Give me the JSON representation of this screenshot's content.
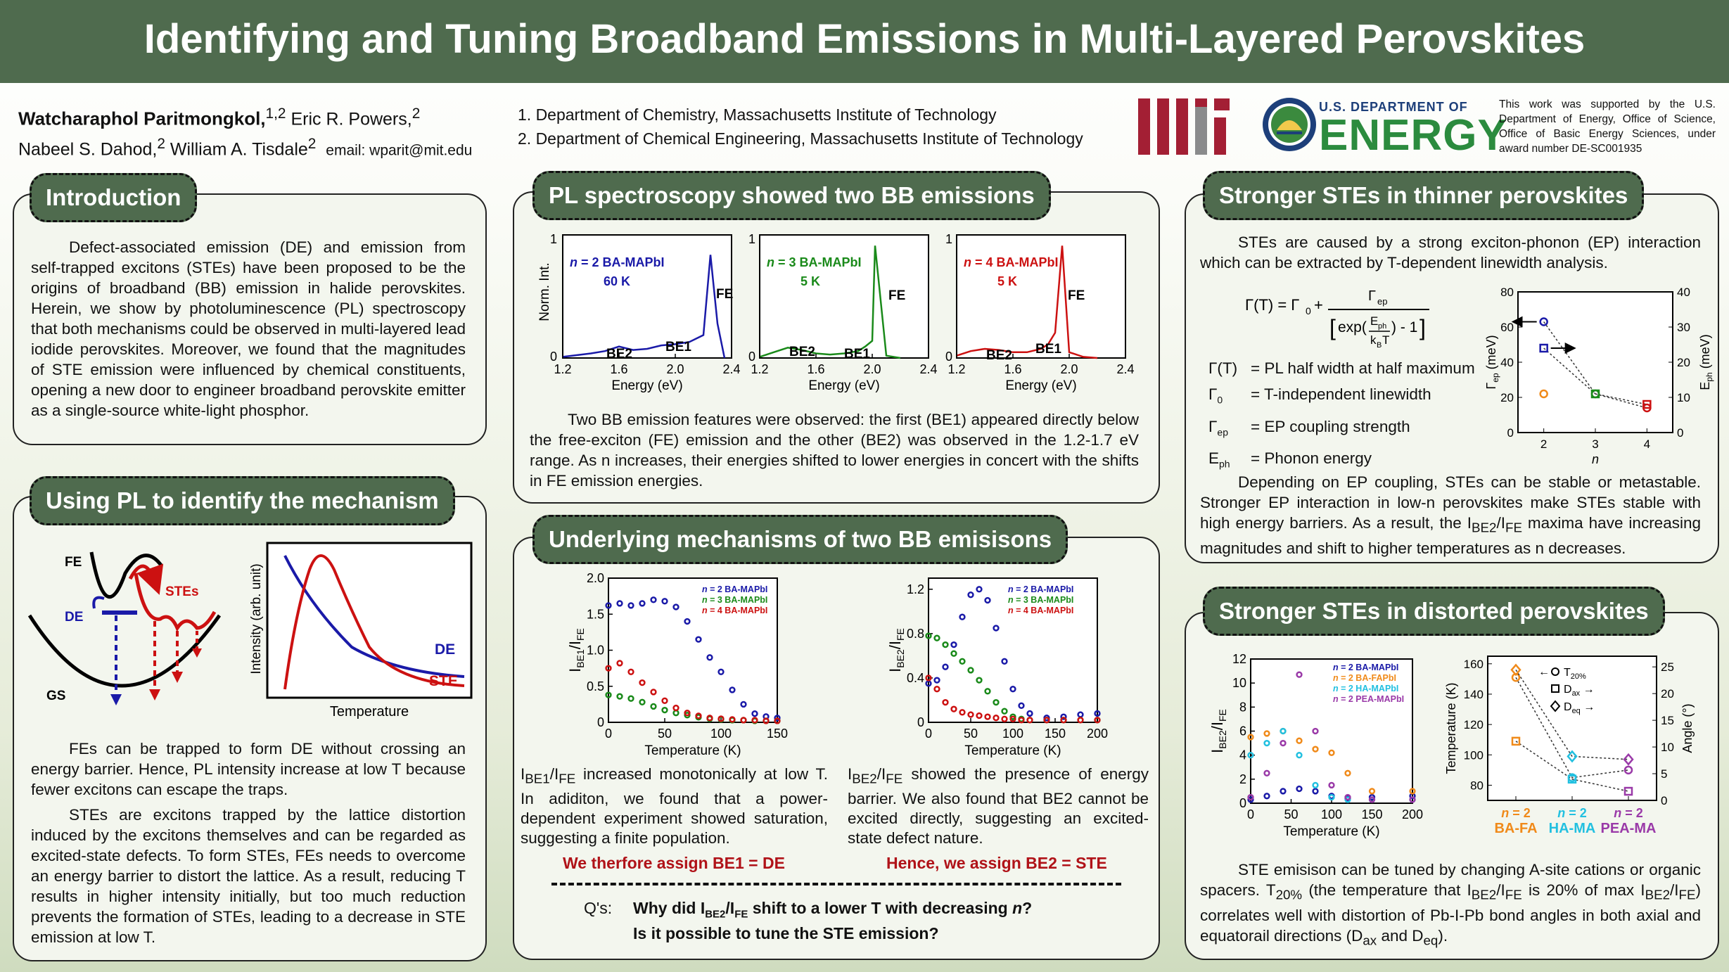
{
  "title": "Identifying and Tuning Broadband Emissions in Multi-Layered Perovskites",
  "authors": {
    "line1_name1": "Watcharaphol Paritmongkol,",
    "line1_sup1": "1,2",
    "line1_name2": " Eric R. Powers,",
    "line1_sup2": "2",
    "line2_name1": "Nabeel S. Dahod,",
    "line2_sup1": "2",
    "line2_name2": " William A. Tisdale",
    "line2_sup2": "2",
    "email": "email: wparit@mit.edu"
  },
  "affiliations": [
    "1. Department of Chemistry, Massachusetts Institute of Technology",
    "2. Department of Chemical Engineering, Massachusetts Institute of Technology"
  ],
  "logos": {
    "doe_small": "U.S. DEPARTMENT OF",
    "doe_big": "ENERGY"
  },
  "support_text": "This work was supported by the U.S. Department of Energy, Office of Science, Office of Basic Energy Sciences, under award number DE-SC001935",
  "colors": {
    "header": "#4f6b4e",
    "blue": "#1a1aa8",
    "green": "#1a8a1a",
    "red": "#cc1111",
    "orange": "#f08a1a",
    "cyan": "#22c0e0",
    "purple": "#9a3aa8"
  },
  "introduction": {
    "heading": "Introduction",
    "body": "Defect-associated emission (DE) and emission from self-trapped excitons (STEs) have been proposed to be the origins of broadband (BB) emission in halide perovskites. Herein, we show by photoluminescence (PL) spectroscopy that both mechanisms could be observed in multi-layered lead iodide perovskites. Moreover, we found that the magnitudes of STE emission were influenced by chemical constituents, opening a new door to engineer broadband perovskite emitter as a single-source white-light phosphor."
  },
  "mechanism": {
    "heading": "Using PL to identify the mechanism",
    "diagram": {
      "fe": "FE",
      "stes": "STEs",
      "de": "DE",
      "gs": "GS"
    },
    "plot": {
      "ylabel": "Intensity (arb. unit)",
      "xlabel": "Temperature",
      "de": "DE",
      "ste": "STE"
    },
    "para1": "FEs can be trapped to form DE without crossing an energy barrier. Hence, PL intensity increase at low T because fewer excitons can escape the traps.",
    "para2": "STEs are excitons trapped by the lattice distortion induced by the excitons themselves and can be regarded as excited-state defects. To form STEs, FEs needs to overcome an energy barrier to distort the lattice. As a result, reducing T results in higher intensity initially, but too much reduction prevents the formation of STEs, leading to a decrease in STE emission at low T."
  },
  "pl_spectroscopy": {
    "heading": "PL spectroscopy showed two BB emissions",
    "panels": [
      {
        "label_n": "n",
        "label": " = 2 BA-MAPbI",
        "temp": "60 K",
        "color": "#1a1aa8"
      },
      {
        "label_n": "n",
        "label": " = 3 BA-MAPbI",
        "temp": "5 K",
        "color": "#1a8a1a"
      },
      {
        "label_n": "n",
        "label": " = 4 BA-MAPbI",
        "temp": "5 K",
        "color": "#cc1111"
      }
    ],
    "ylabel": "Norm. Int.",
    "xlabel": "Energy (eV)",
    "xticks": [
      "1.2",
      "1.6",
      "2.0",
      "2.4"
    ],
    "yticks": [
      "0",
      "1"
    ],
    "be1": "BE1",
    "be2": "BE2",
    "fe": "FE",
    "body": "Two BB emission features were observed: the first (BE1) appeared directly below the free-exciton (FE) emission and the other (BE2) was observed in the 1.2-1.7 eV range. As n increases, their energies shifted to lower energies in concert with the shifts in FE emission energies."
  },
  "underlying": {
    "heading": "Underlying mechanisms of two BB emisisons",
    "legend": [
      "= 2 BA-MAPbI",
      "= 3 BA-MAPbI",
      "= 4 BA-MAPbI"
    ],
    "xlabel": "Temperature (K)",
    "left_ylabel": "IBE1/IFE",
    "right_ylabel": "IBE2/IFE",
    "left_text": "IBE1/IFE increased monotonically at low T. In adiditon, we found that a power-dependent experiment showed saturation, suggesting a finite population.",
    "right_text": "IBE2/IFE showed the presence of energy barrier. We also found that BE2 cannot be excited directly, suggesting an excited-state defect nature.",
    "assign1": "We therfore assign BE1 = DE",
    "assign2": "Hence, we assign BE2 = STE",
    "q_label": "Q's:",
    "q1_pre": "Why did I",
    "q1_mid": "/I",
    "q1_post": " shift to a lower T with decreasing ",
    "q1_n": "n",
    "q1_end": "?",
    "q2": "Is it possible to tune the STE emission?"
  },
  "thinner": {
    "heading": "Stronger STEs in thinner perovskites",
    "intro": "STEs are caused by a strong exciton-phonon (EP) interaction which can be extracted by T-dependent linewidth analysis.",
    "defs": [
      {
        "sym": "Γ(T)",
        "desc": "= PL half width at half maximum"
      },
      {
        "sym": "Γ₀",
        "desc": "= T-independent linewidth"
      },
      {
        "sym": "Γep",
        "desc": "= EP coupling strength"
      },
      {
        "sym": "Eph",
        "desc": "= Phonon energy"
      }
    ],
    "body": "Depending on EP coupling, STEs can be stable or metastable. Stronger EP interaction in low-n perovskites make STEs stable with high energy barriers. As a result, the IBE2/IFE maxima have increasing magnitudes and shift to higher temperatures as n decreases."
  },
  "distorted": {
    "heading": "Stronger STEs in distorted perovskites",
    "legend": [
      "= 2 BA-MAPbI",
      "= 2 BA-FAPbI",
      "= 2 HA-MAPbI",
      "= 2 PEA-MAPbI"
    ],
    "xlabel": "Temperature (K)",
    "ylabel": "IBE2/IFE",
    "right_ylabel_left": "Temperature (K)",
    "right_ylabel_right": "Angle (°)",
    "right_legend": [
      "T20%",
      "Dax",
      "Deq"
    ],
    "cats": [
      "BA-FA",
      "HA-MA",
      "PEA-MA"
    ],
    "body": "STE emisison can be tuned by changing A-site cations or organic spacers. T20% (the temperature that IBE2/IFE is 20% of max IBE2/IFE) correlates well with distortion of Pb-I-Pb bond angles in both axial and equatorail directions (Dax and Deq)."
  },
  "chart_data": [
    {
      "type": "line",
      "title": "",
      "xlabel": "Energy (eV)",
      "ylabel": "Norm. Int.",
      "xlim": [
        1.2,
        2.4
      ],
      "ylim": [
        0,
        1
      ],
      "series": [
        {
          "name": "n = 2 BA-MAPbI 60 K",
          "x": [
            1.2,
            1.4,
            1.5,
            1.6,
            1.7,
            1.8,
            1.9,
            2.0,
            2.1,
            2.2,
            2.25,
            2.3,
            2.35
          ],
          "y": [
            0.01,
            0.04,
            0.06,
            0.1,
            0.07,
            0.08,
            0.11,
            0.12,
            0.14,
            0.2,
            0.9,
            0.3,
            0.0
          ]
        }
      ]
    },
    {
      "type": "line",
      "title": "",
      "xlabel": "Energy (eV)",
      "ylabel": "",
      "xlim": [
        1.2,
        2.4
      ],
      "ylim": [
        0,
        1
      ],
      "series": [
        {
          "name": "n = 3 BA-MAPbI 5 K",
          "x": [
            1.2,
            1.3,
            1.4,
            1.5,
            1.6,
            1.7,
            1.8,
            1.9,
            1.95,
            2.0,
            2.02,
            2.1,
            2.2
          ],
          "y": [
            0.01,
            0.05,
            0.09,
            0.07,
            0.04,
            0.03,
            0.04,
            0.06,
            0.1,
            0.15,
            0.98,
            0.02,
            0.0
          ]
        }
      ]
    },
    {
      "type": "line",
      "title": "",
      "xlabel": "Energy (eV)",
      "ylabel": "",
      "xlim": [
        1.2,
        2.4
      ],
      "ylim": [
        0,
        1
      ],
      "series": [
        {
          "name": "n = 4 BA-MAPbI 5 K",
          "x": [
            1.2,
            1.3,
            1.4,
            1.5,
            1.6,
            1.7,
            1.8,
            1.85,
            1.9,
            1.95,
            2.0,
            2.1,
            2.2
          ],
          "y": [
            0.02,
            0.06,
            0.08,
            0.07,
            0.05,
            0.05,
            0.08,
            0.12,
            0.22,
            0.98,
            0.05,
            0.01,
            0.0
          ]
        }
      ]
    },
    {
      "type": "scatter",
      "title": "",
      "xlabel": "Temperature (K)",
      "ylabel": "IBE1/IFE",
      "xlim": [
        0,
        150
      ],
      "ylim": [
        0,
        2.0
      ],
      "series": [
        {
          "name": "n = 2 BA-MAPbI",
          "x": [
            0,
            10,
            20,
            30,
            40,
            50,
            60,
            70,
            80,
            90,
            100,
            110,
            120,
            130,
            140,
            150
          ],
          "y": [
            1.62,
            1.65,
            1.62,
            1.65,
            1.7,
            1.68,
            1.6,
            1.4,
            1.15,
            0.9,
            0.7,
            0.45,
            0.25,
            0.12,
            0.08,
            0.06
          ]
        },
        {
          "name": "n = 3 BA-MAPbI",
          "x": [
            0,
            10,
            20,
            30,
            40,
            50,
            60,
            70,
            80,
            90,
            100,
            110,
            120,
            130,
            140,
            150
          ],
          "y": [
            0.38,
            0.36,
            0.33,
            0.28,
            0.22,
            0.17,
            0.13,
            0.1,
            0.07,
            0.05,
            0.04,
            0.03,
            0.03,
            0.02,
            0.02,
            0.02
          ]
        },
        {
          "name": "n = 4 BA-MAPbI",
          "x": [
            0,
            10,
            20,
            30,
            40,
            50,
            60,
            70,
            80,
            90,
            100,
            110,
            120,
            130,
            140,
            150
          ],
          "y": [
            0.75,
            0.82,
            0.7,
            0.55,
            0.42,
            0.3,
            0.2,
            0.13,
            0.09,
            0.06,
            0.05,
            0.04,
            0.03,
            0.03,
            0.02,
            0.02
          ]
        }
      ]
    },
    {
      "type": "scatter",
      "title": "",
      "xlabel": "Temperature (K)",
      "ylabel": "IBE2/IFE",
      "xlim": [
        0,
        200
      ],
      "ylim": [
        0,
        1.3
      ],
      "series": [
        {
          "name": "n = 2 BA-MAPbI",
          "x": [
            0,
            10,
            20,
            30,
            40,
            50,
            60,
            70,
            80,
            90,
            100,
            110,
            120,
            140,
            160,
            180,
            200
          ],
          "y": [
            0.35,
            0.38,
            0.5,
            0.7,
            0.95,
            1.15,
            1.2,
            1.1,
            0.85,
            0.55,
            0.3,
            0.15,
            0.08,
            0.04,
            0.05,
            0.07,
            0.08
          ]
        },
        {
          "name": "n = 3 BA-MAPbI",
          "x": [
            0,
            10,
            20,
            30,
            40,
            50,
            60,
            70,
            80,
            90,
            100,
            110,
            120,
            140,
            160,
            180,
            200
          ],
          "y": [
            0.78,
            0.76,
            0.7,
            0.62,
            0.55,
            0.47,
            0.38,
            0.28,
            0.18,
            0.1,
            0.05,
            0.03,
            0.02,
            0.02,
            0.02,
            0.02,
            0.02
          ]
        },
        {
          "name": "n = 4 BA-MAPbI",
          "x": [
            0,
            10,
            20,
            30,
            40,
            50,
            60,
            70,
            80,
            90,
            100,
            110,
            120,
            140,
            160,
            180,
            200
          ],
          "y": [
            0.4,
            0.3,
            0.18,
            0.12,
            0.09,
            0.07,
            0.06,
            0.05,
            0.04,
            0.03,
            0.03,
            0.02,
            0.02,
            0.02,
            0.02,
            0.02,
            0.02
          ]
        }
      ]
    },
    {
      "type": "scatter",
      "title": "",
      "xlabel": "n",
      "ylabel": "Γep (meV)",
      "y2label": "Eph (meV)",
      "xlim": [
        1.5,
        4.5
      ],
      "ylim": [
        0,
        80
      ],
      "y2lim": [
        0,
        40
      ],
      "categories": [
        "2",
        "3",
        "4"
      ],
      "series": [
        {
          "name": "Γep",
          "x": [
            2,
            3,
            4
          ],
          "y": [
            63,
            22,
            14
          ]
        },
        {
          "name": "Eph",
          "x": [
            2,
            3,
            4
          ],
          "y": [
            24,
            11,
            8
          ]
        },
        {
          "name": "Γ0",
          "x": [
            2
          ],
          "y": [
            22
          ]
        }
      ]
    },
    {
      "type": "scatter",
      "title": "",
      "xlabel": "Temperature (K)",
      "ylabel": "IBE2/IFE",
      "xlim": [
        0,
        200
      ],
      "ylim": [
        0,
        12
      ],
      "series": [
        {
          "name": "n = 2 BA-MAPbI",
          "x": [
            0,
            20,
            40,
            60,
            80,
            100,
            120,
            150,
            200
          ],
          "y": [
            0.3,
            0.6,
            1.0,
            1.2,
            1.0,
            0.6,
            0.4,
            0.5,
            0.6
          ]
        },
        {
          "name": "n = 2 BA-FAPbI",
          "x": [
            0,
            20,
            40,
            60,
            80,
            100,
            120,
            150,
            200
          ],
          "y": [
            5.5,
            5.8,
            6.0,
            5.2,
            4.5,
            4.2,
            2.5,
            1.0,
            1.0
          ]
        },
        {
          "name": "n = 2 HA-MAPbI",
          "x": [
            0,
            20,
            40,
            60,
            80,
            100,
            120,
            150,
            200
          ],
          "y": [
            4.0,
            5.0,
            6.0,
            4.0,
            1.5,
            0.5,
            0.3,
            0.3,
            0.3
          ]
        },
        {
          "name": "n = 2 PEA-MAPbI",
          "x": [
            0,
            20,
            40,
            60,
            80,
            100,
            120,
            150,
            200
          ],
          "y": [
            0.5,
            2.5,
            5.0,
            10.7,
            6.0,
            1.5,
            0.5,
            0.3,
            0.3
          ]
        }
      ]
    },
    {
      "type": "scatter",
      "title": "",
      "xlabel": "",
      "ylabel": "Temperature (K)",
      "y2label": "Angle (°)",
      "ylim": [
        70,
        165
      ],
      "y2lim": [
        0,
        27
      ],
      "categories": [
        "BA-FA",
        "HA-MA",
        "PEA-MA"
      ],
      "series": [
        {
          "name": "T20%",
          "values": [
            151,
            85,
            90
          ]
        },
        {
          "name": "Dax",
          "values": [
            109,
            84,
            76
          ]
        },
        {
          "name": "Deq",
          "values": [
            156,
            99,
            97
          ]
        }
      ]
    }
  ]
}
